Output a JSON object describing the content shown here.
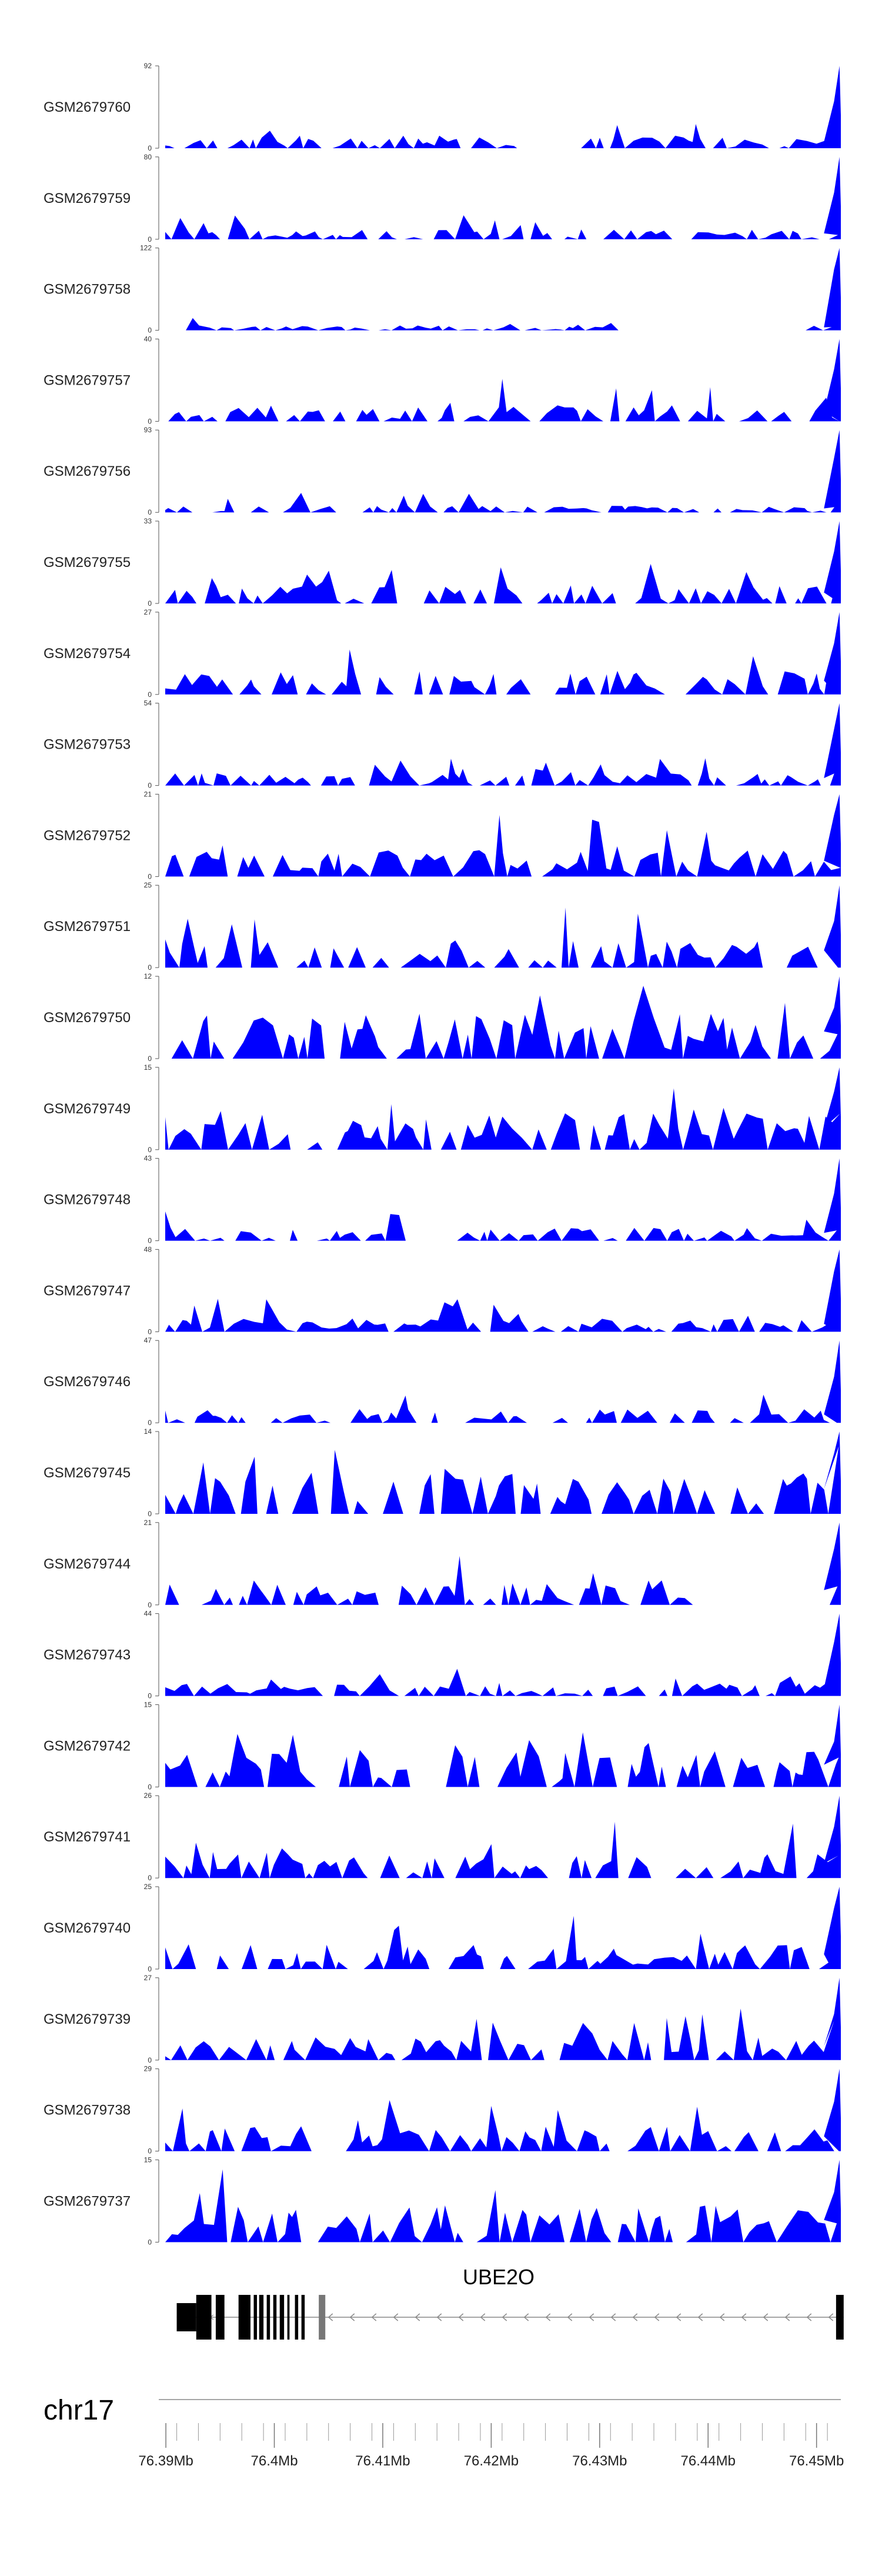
{
  "chart_data": {
    "type": "area",
    "chromosome": "chr17",
    "gene": {
      "name": "UBE2O",
      "strand": "-",
      "start": 76.391,
      "end": 76.4525,
      "exons": [
        {
          "start": 76.391,
          "end": 76.3928
        },
        {
          "start": 76.3928,
          "end": 76.3942
        },
        {
          "start": 76.3946,
          "end": 76.3954
        },
        {
          "start": 76.3967,
          "end": 76.3978
        },
        {
          "start": 76.3981,
          "end": 76.3984
        },
        {
          "start": 76.3986,
          "end": 76.399
        },
        {
          "start": 76.3993,
          "end": 76.3996
        },
        {
          "start": 76.3999,
          "end": 76.4002
        },
        {
          "start": 76.4005,
          "end": 76.4009
        },
        {
          "start": 76.4012,
          "end": 76.4014
        },
        {
          "start": 76.4019,
          "end": 76.4022
        },
        {
          "start": 76.4025,
          "end": 76.4028
        },
        {
          "start": 76.4041,
          "end": 76.4047
        },
        {
          "start": 76.4518,
          "end": 76.4525
        }
      ]
    },
    "genome_axis": {
      "min": 76.38994,
      "max": 76.45224,
      "ticks": [
        "76.39Mb",
        "76.4Mb",
        "76.41Mb",
        "76.42Mb",
        "76.43Mb",
        "76.44Mb",
        "76.45Mb"
      ],
      "tick_values": [
        76.39,
        76.4,
        76.41,
        76.42,
        76.43,
        76.44,
        76.45
      ]
    },
    "tracks": [
      {
        "name": "GSM2679760",
        "ymax": "92",
        "ymin": "0",
        "max": 92,
        "seed": 1,
        "noise": 0.13,
        "spike": 0.35,
        "gaps": [
          [
            0.52,
            0.58
          ]
        ]
      },
      {
        "name": "GSM2679759",
        "ymax": "80",
        "ymin": "0",
        "max": 80,
        "seed": 2,
        "noise": 0.12,
        "spike": 0.3
      },
      {
        "name": "GSM2679758",
        "ymax": "122",
        "ymin": "0",
        "max": 122,
        "seed": 3,
        "noise": 0.06,
        "spike": 0.15,
        "gaps": [
          [
            0.0,
            0.03
          ],
          [
            0.7,
            0.95
          ]
        ]
      },
      {
        "name": "GSM2679757",
        "ymax": "40",
        "ymin": "0",
        "max": 40,
        "seed": 4,
        "noise": 0.2,
        "spike": 0.55
      },
      {
        "name": "GSM2679756",
        "ymax": "93",
        "ymin": "0",
        "max": 93,
        "seed": 5,
        "noise": 0.08,
        "spike": 0.25
      },
      {
        "name": "GSM2679755",
        "ymax": "33",
        "ymin": "0",
        "max": 33,
        "seed": 6,
        "noise": 0.22,
        "spike": 0.5
      },
      {
        "name": "GSM2679754",
        "ymax": "27",
        "ymin": "0",
        "max": 27,
        "seed": 7,
        "noise": 0.28,
        "spike": 0.55
      },
      {
        "name": "GSM2679753",
        "ymax": "54",
        "ymin": "0",
        "max": 54,
        "seed": 8,
        "noise": 0.15,
        "spike": 0.4
      },
      {
        "name": "GSM2679752",
        "ymax": "21",
        "ymin": "0",
        "max": 21,
        "seed": 9,
        "noise": 0.32,
        "spike": 0.75
      },
      {
        "name": "GSM2679751",
        "ymax": "25",
        "ymin": "0",
        "max": 25,
        "seed": 10,
        "noise": 0.35,
        "spike": 0.85
      },
      {
        "name": "GSM2679750",
        "ymax": "12",
        "ymin": "0",
        "max": 12,
        "seed": 11,
        "noise": 0.55,
        "spike": 0.95
      },
      {
        "name": "GSM2679749",
        "ymax": "15",
        "ymin": "0",
        "max": 15,
        "seed": 12,
        "noise": 0.45,
        "spike": 0.9
      },
      {
        "name": "GSM2679748",
        "ymax": "43",
        "ymin": "0",
        "max": 43,
        "seed": 13,
        "noise": 0.16,
        "spike": 0.45
      },
      {
        "name": "GSM2679747",
        "ymax": "48",
        "ymin": "0",
        "max": 48,
        "seed": 14,
        "noise": 0.16,
        "spike": 0.4
      },
      {
        "name": "GSM2679746",
        "ymax": "47",
        "ymin": "0",
        "max": 47,
        "seed": 15,
        "noise": 0.17,
        "spike": 0.45
      },
      {
        "name": "GSM2679745",
        "ymax": "14",
        "ymin": "0",
        "max": 14,
        "seed": 16,
        "noise": 0.5,
        "spike": 0.95
      },
      {
        "name": "GSM2679744",
        "ymax": "21",
        "ymin": "0",
        "max": 21,
        "seed": 17,
        "noise": 0.3,
        "spike": 0.65,
        "gaps": [
          [
            0.77,
            0.98
          ]
        ]
      },
      {
        "name": "GSM2679743",
        "ymax": "44",
        "ymin": "0",
        "max": 44,
        "seed": 18,
        "noise": 0.16,
        "spike": 0.35
      },
      {
        "name": "GSM2679742",
        "ymax": "15",
        "ymin": "0",
        "max": 15,
        "seed": 19,
        "noise": 0.45,
        "spike": 0.85
      },
      {
        "name": "GSM2679741",
        "ymax": "26",
        "ymin": "0",
        "max": 26,
        "seed": 20,
        "noise": 0.3,
        "spike": 0.75
      },
      {
        "name": "GSM2679740",
        "ymax": "25",
        "ymin": "0",
        "max": 25,
        "seed": 21,
        "noise": 0.3,
        "spike": 0.7
      },
      {
        "name": "GSM2679739",
        "ymax": "27",
        "ymin": "0",
        "max": 27,
        "seed": 22,
        "noise": 0.28,
        "spike": 0.7
      },
      {
        "name": "GSM2679738",
        "ymax": "29",
        "ymin": "0",
        "max": 29,
        "seed": 23,
        "noise": 0.3,
        "spike": 0.65
      },
      {
        "name": "GSM2679737",
        "ymax": "15",
        "ymin": "0",
        "max": 15,
        "seed": 24,
        "noise": 0.45,
        "spike": 0.9
      }
    ],
    "colors": {
      "fill": "#0000ff",
      "axis": "#555555",
      "gene": "#000000",
      "intron": "#8a8a8a"
    }
  }
}
